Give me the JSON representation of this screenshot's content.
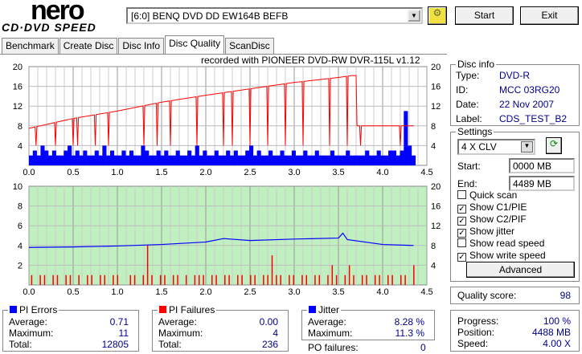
{
  "app": {
    "logo_top": "nero",
    "logo_bottom": "CD·DVD SPEED"
  },
  "toolbar": {
    "drive": "[6:0]  BENQ DVD DD EW164B BEFB",
    "start": "Start",
    "exit": "Exit"
  },
  "tabs": [
    "Benchmark",
    "Create Disc",
    "Disc Info",
    "Disc Quality",
    "ScanDisc"
  ],
  "active_tab": "Disc Quality",
  "chart_caption": "recorded with PIONEER DVD-RW  DVR-115L v1.12",
  "disc_info": {
    "title": "Disc info",
    "type_label": "Type:",
    "type": "DVD-R",
    "id_label": "ID:",
    "id": "MCC 03RG20",
    "date_label": "Date:",
    "date": "22 Nov 2007",
    "label_label": "Label:",
    "label": "CDS_TEST_B2"
  },
  "settings": {
    "title": "Settings",
    "speed": "4 X CLV",
    "start_label": "Start:",
    "start": "0000 MB",
    "end_label": "End:",
    "end": "4489 MB",
    "checks": [
      {
        "label": "Quick scan",
        "checked": false
      },
      {
        "label": "Show C1/PIE",
        "checked": true
      },
      {
        "label": "Show C2/PIF",
        "checked": true
      },
      {
        "label": "Show jitter",
        "checked": true
      },
      {
        "label": "Show read speed",
        "checked": false
      },
      {
        "label": "Show write speed",
        "checked": true
      }
    ],
    "advanced": "Advanced"
  },
  "quality": {
    "label": "Quality score:",
    "value": "98"
  },
  "pi_errors": {
    "title": "PI Errors",
    "avg_label": "Average:",
    "avg": "0.71",
    "max_label": "Maximum:",
    "max": "11",
    "total_label": "Total:",
    "total": "12805"
  },
  "pi_failures": {
    "title": "PI Failures",
    "avg_label": "Average:",
    "avg": "0.00",
    "max_label": "Maximum:",
    "max": "4",
    "total_label": "Total:",
    "total": "236"
  },
  "jitter": {
    "title": "Jitter",
    "avg_label": "Average:",
    "avg": "8.28 %",
    "max_label": "Maximum:",
    "max": "11.3 %",
    "po_label": "PO failures:",
    "po": "0"
  },
  "progress": {
    "progress_label": "Progress:",
    "progress": "100 %",
    "position_label": "Position:",
    "position": "4488 MB",
    "speed_label": "Speed:",
    "speed": "4.00 X"
  },
  "colors": {
    "pie": "#0000ff",
    "pif": "#ff0000",
    "speed": "#ff0000",
    "jitter": "#0000ff",
    "bottom_bg": "#c0f0c0"
  },
  "chart_data": [
    {
      "type": "bar",
      "name": "PI errors + write speed",
      "xlim": [
        0,
        4.5
      ],
      "ylim": [
        0,
        20
      ],
      "y2lim": [
        0,
        20
      ],
      "xticks": [
        "0.0",
        "0.5",
        "1.0",
        "1.5",
        "2.0",
        "2.5",
        "3.0",
        "3.5",
        "4.0",
        "4.5"
      ],
      "yticks": [
        "20",
        "16",
        "12",
        "8",
        "4"
      ],
      "y2ticks": [
        "20",
        "16",
        "12",
        "8",
        "4"
      ],
      "pie": [
        2,
        3,
        2,
        4,
        3,
        2,
        3,
        2,
        2,
        3,
        4,
        2,
        3,
        2,
        3,
        2,
        2,
        3,
        2,
        4,
        2,
        3,
        2,
        2,
        3,
        2,
        3,
        2,
        2,
        4,
        3,
        2,
        2,
        3,
        2,
        3,
        2,
        2,
        3,
        2,
        2,
        3,
        2,
        4,
        2,
        3,
        2,
        2,
        3,
        2,
        2,
        3,
        2,
        3,
        2,
        2,
        3,
        4,
        2,
        3,
        2,
        2,
        3,
        2,
        2,
        3,
        2,
        2,
        3,
        2,
        2,
        3,
        2,
        2,
        3,
        2,
        2,
        2,
        3,
        2,
        2,
        2,
        3,
        2,
        2,
        2,
        2,
        3,
        2,
        2,
        3,
        2,
        2,
        3,
        3,
        2,
        3,
        11,
        4,
        2
      ],
      "speed": [
        [
          0,
          7.5
        ],
        [
          0.5,
          9.5
        ],
        [
          1,
          11
        ],
        [
          1.5,
          12.8
        ],
        [
          2,
          14.2
        ],
        [
          2.5,
          15.5
        ],
        [
          3,
          16.8
        ],
        [
          3.5,
          17.8
        ],
        [
          3.65,
          18.2
        ],
        [
          3.7,
          8
        ],
        [
          4,
          8
        ],
        [
          4.2,
          8
        ],
        [
          4.35,
          8
        ]
      ],
      "speed_dips": [
        0.08,
        0.3,
        0.5,
        0.55,
        0.75,
        0.9,
        1.3,
        1.45,
        1.6,
        1.9,
        2.2,
        2.3,
        2.5,
        2.7,
        2.9,
        3.1,
        3.4,
        3.6,
        3.75,
        4.2
      ]
    },
    {
      "type": "bar",
      "name": "PI failures + jitter",
      "xlim": [
        0,
        4.5
      ],
      "ylim": [
        0,
        10
      ],
      "y2lim": [
        0,
        20
      ],
      "xticks": [
        "0.0",
        "0.5",
        "1.0",
        "1.5",
        "2.0",
        "2.5",
        "3.0",
        "3.5",
        "4.0",
        "4.5"
      ],
      "yticks": [
        "10",
        "8",
        "6",
        "4",
        "2"
      ],
      "y2ticks": [
        "20",
        "16",
        "12",
        "8",
        "4"
      ],
      "pif": [
        1,
        0,
        1,
        1,
        0,
        1,
        1,
        0,
        1,
        1,
        0,
        1,
        0,
        1,
        1,
        0,
        1,
        1,
        0,
        1,
        1,
        0,
        0,
        1,
        1,
        0,
        1,
        4,
        1,
        0,
        1,
        1,
        0,
        1,
        1,
        0,
        1,
        0,
        1,
        1,
        1,
        0,
        1,
        1,
        0,
        1,
        1,
        0,
        1,
        1,
        0,
        1,
        1,
        0,
        1,
        1,
        3,
        1,
        1,
        0,
        1,
        1,
        0,
        1,
        1,
        0,
        1,
        1,
        0,
        1,
        2,
        1,
        0,
        1,
        2,
        1,
        0,
        1,
        1,
        0,
        1,
        1,
        0,
        1,
        1,
        0,
        1,
        1,
        0,
        2
      ],
      "jitter": [
        [
          0,
          7.6
        ],
        [
          0.5,
          7.7
        ],
        [
          1,
          7.9
        ],
        [
          1.5,
          8.2
        ],
        [
          2,
          8.7
        ],
        [
          2.2,
          9.4
        ],
        [
          2.5,
          9.0
        ],
        [
          3,
          9.3
        ],
        [
          3.5,
          9.5
        ],
        [
          3.55,
          10.5
        ],
        [
          3.6,
          9.2
        ],
        [
          4,
          8.2
        ],
        [
          4.35,
          8
        ]
      ]
    }
  ]
}
